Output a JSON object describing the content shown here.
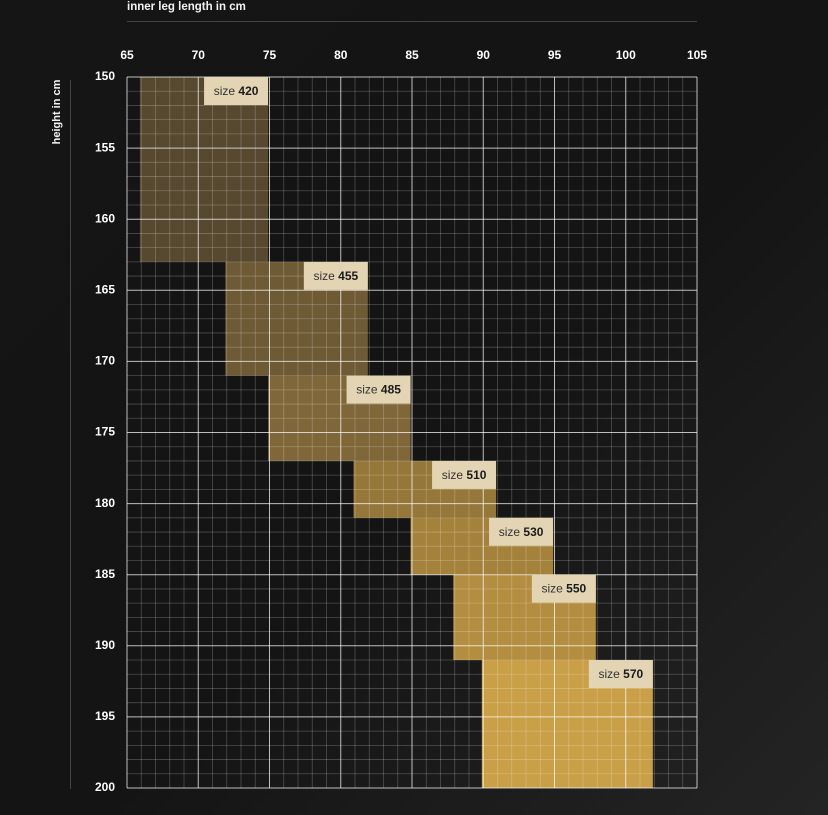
{
  "chart_data": {
    "type": "heatmap",
    "xlabel": "inner leg length in cm",
    "ylabel": "height in cm",
    "xlim": [
      65,
      105
    ],
    "ylim": [
      150,
      200
    ],
    "x_ticks": [
      65,
      70,
      75,
      80,
      85,
      90,
      95,
      100,
      105
    ],
    "y_ticks": [
      150,
      155,
      160,
      165,
      170,
      175,
      180,
      185,
      190,
      195,
      200
    ],
    "grid": true,
    "size_prefix": "size",
    "sizes": [
      {
        "label": "420",
        "inner_leg": [
          65.9,
          74.9
        ],
        "height": [
          150,
          163
        ],
        "color": "#574830"
      },
      {
        "label": "455",
        "inner_leg": [
          71.9,
          81.9
        ],
        "height": [
          163,
          171
        ],
        "color": "#6e5a35"
      },
      {
        "label": "485",
        "inner_leg": [
          74.9,
          84.9
        ],
        "height": [
          171,
          177
        ],
        "color": "#806739"
      },
      {
        "label": "510",
        "inner_leg": [
          80.9,
          90.9
        ],
        "height": [
          177,
          181
        ],
        "color": "#957739"
      },
      {
        "label": "530",
        "inner_leg": [
          84.9,
          94.9
        ],
        "height": [
          181,
          185
        ],
        "color": "#a4823c"
      },
      {
        "label": "550",
        "inner_leg": [
          87.9,
          97.9
        ],
        "height": [
          185,
          191
        ],
        "color": "#b38d40"
      },
      {
        "label": "570",
        "inner_leg": [
          89.9,
          101.9
        ],
        "height": [
          191,
          200
        ],
        "color": "#c99f48"
      }
    ]
  }
}
